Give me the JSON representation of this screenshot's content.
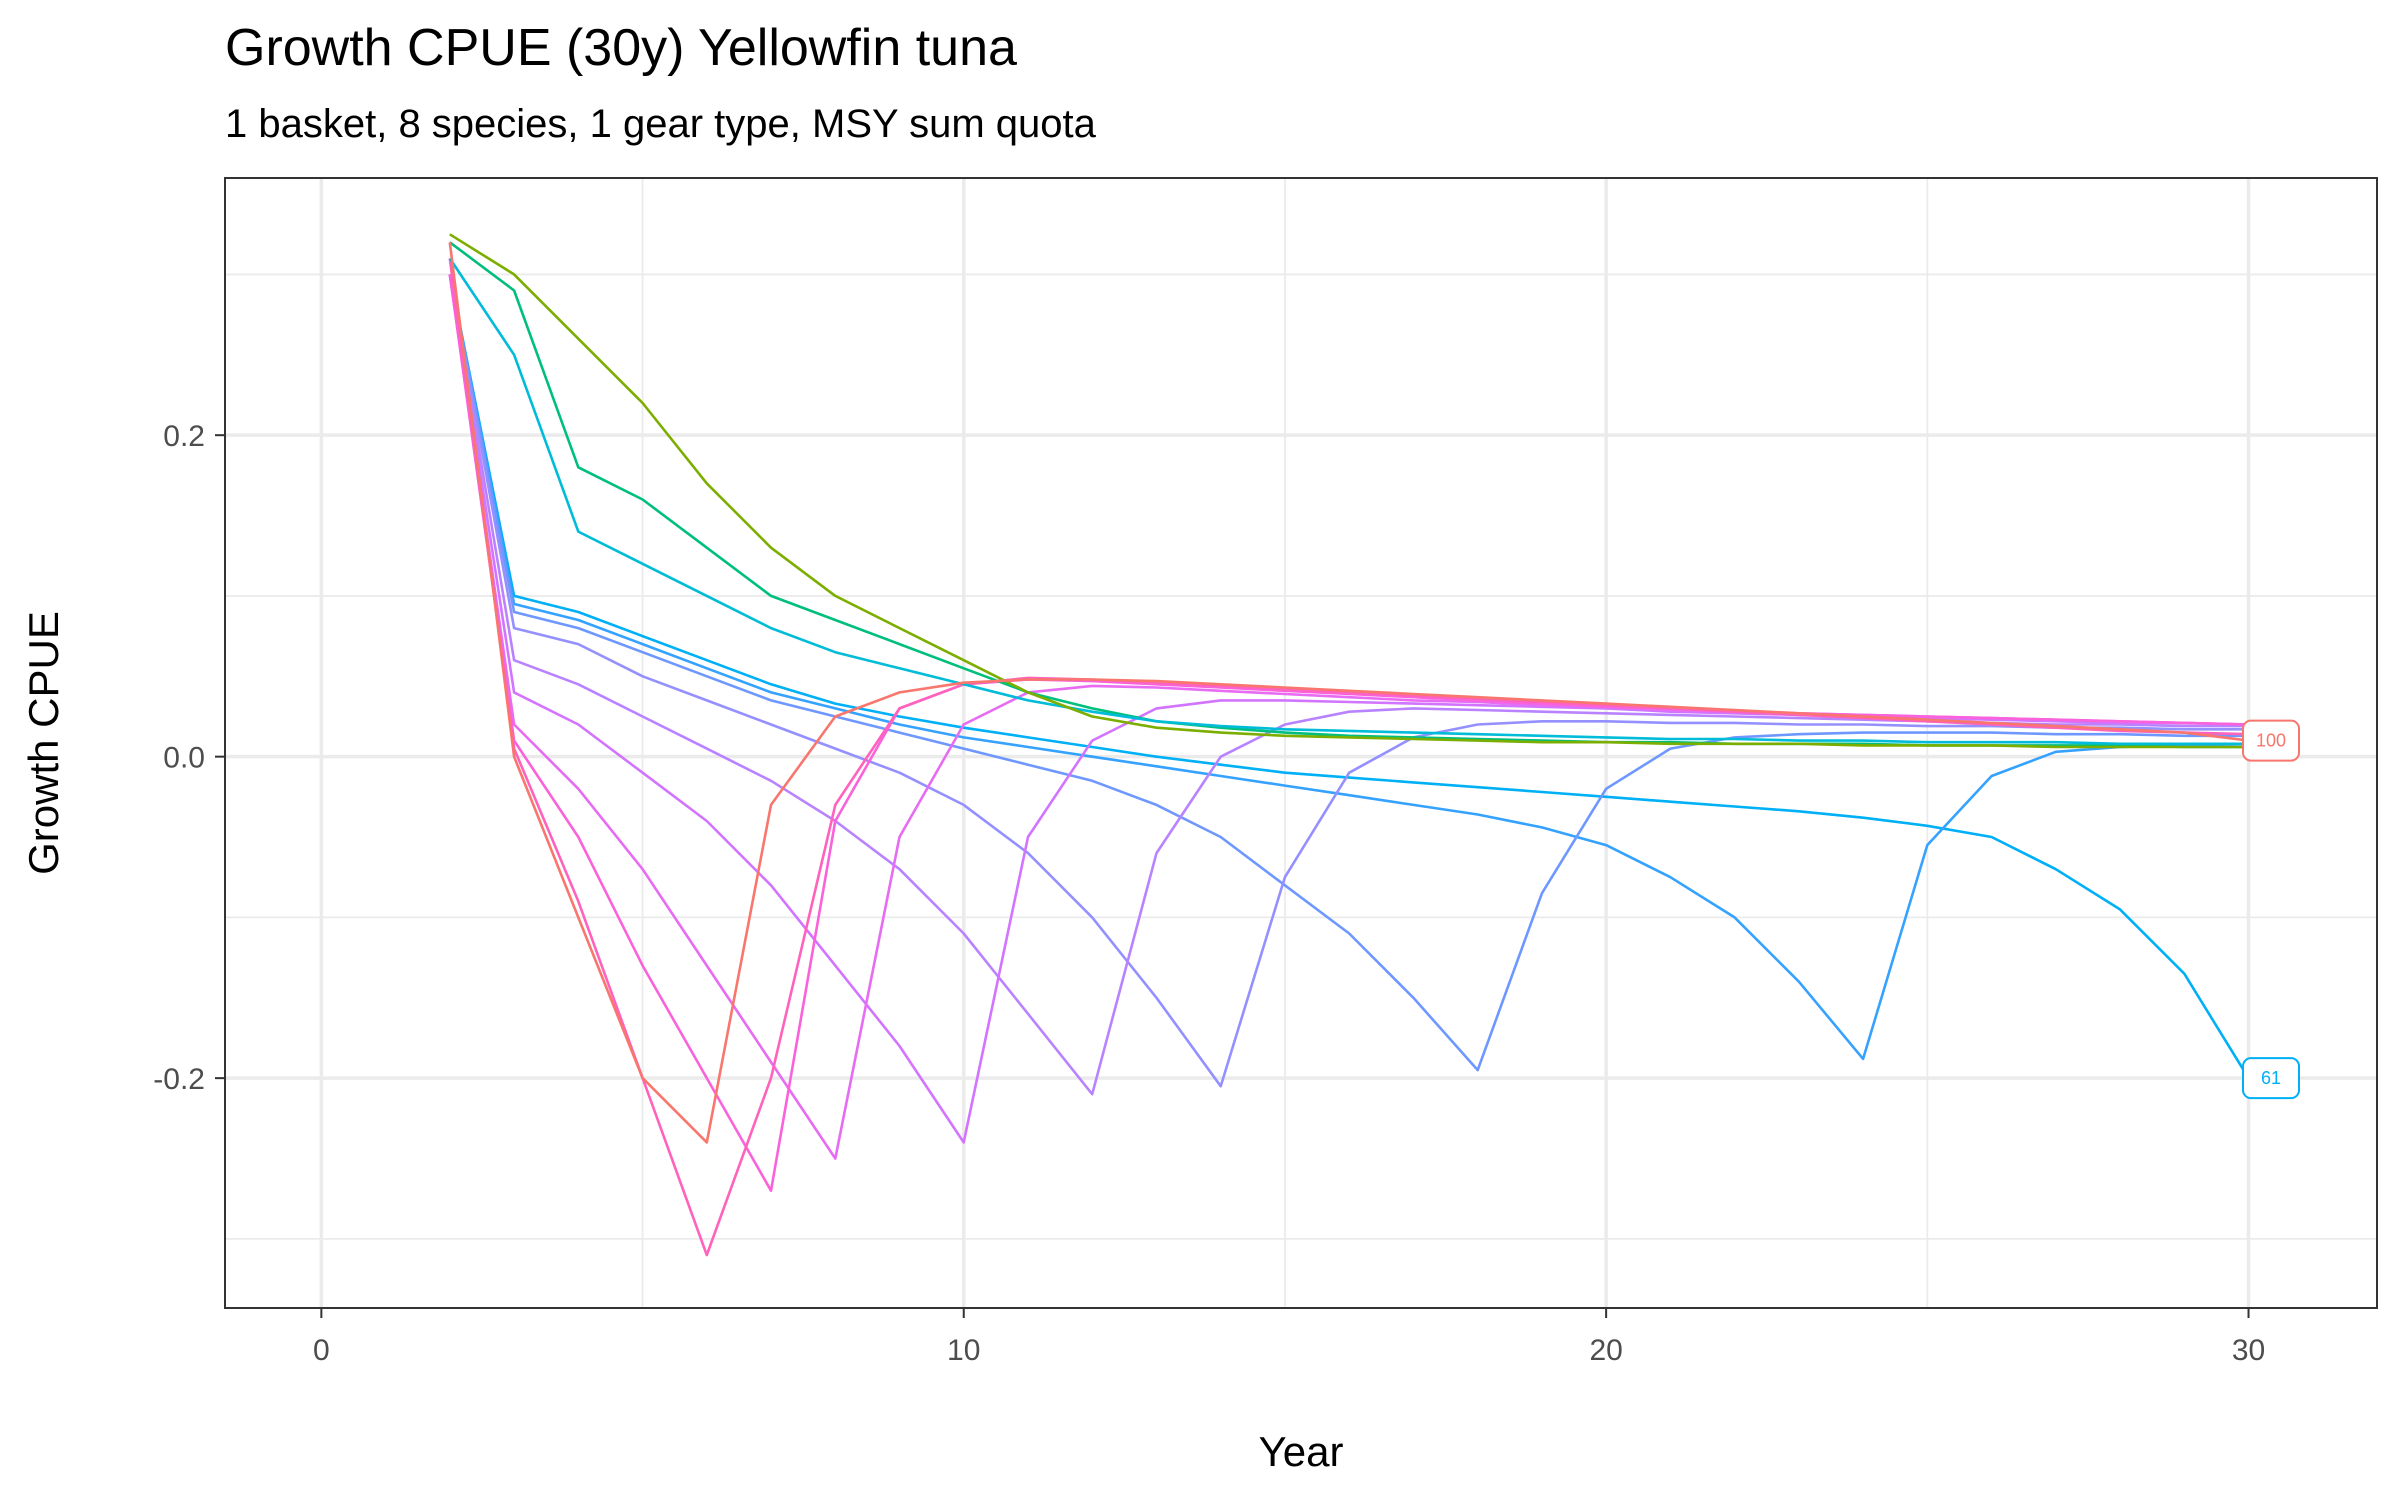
{
  "chart_data": {
    "type": "line",
    "title": "Growth CPUE (30y) Yellowfin tuna",
    "subtitle": "1 basket, 8 species, 1 gear type, MSY sum quota",
    "xlabel": "Year",
    "ylabel": "Growth CPUE",
    "xlim": [
      -1.5,
      32
    ],
    "ylim": [
      -0.343,
      0.36
    ],
    "x_ticks": [
      0,
      10,
      20,
      30
    ],
    "x_tick_labels": [
      "0",
      "10",
      "20",
      "30"
    ],
    "y_ticks": [
      -0.2,
      0.0,
      0.2
    ],
    "y_tick_labels": [
      "-0.2",
      "0.0",
      "0.2"
    ],
    "grid": true,
    "legend": "none",
    "series_note": "Quota scenarios 61 to 100, one line per scenario; colour runs from blue (61) through purple to pink/red (100)",
    "series": [
      {
        "label": "61",
        "color": "#00B0F6",
        "x": [
          2,
          3,
          4,
          5,
          6,
          7,
          8,
          9,
          10,
          11,
          12,
          13,
          14,
          15,
          16,
          17,
          18,
          19,
          20,
          21,
          22,
          23,
          24,
          25,
          26,
          27,
          28,
          29,
          30
        ],
        "y": [
          0.3,
          0.1,
          0.09,
          0.075,
          0.06,
          0.045,
          0.033,
          0.025,
          0.018,
          0.012,
          0.006,
          0.0,
          -0.005,
          -0.01,
          -0.013,
          -0.016,
          -0.019,
          -0.022,
          -0.025,
          -0.028,
          -0.031,
          -0.034,
          -0.038,
          -0.043,
          -0.05,
          -0.07,
          -0.095,
          -0.135,
          -0.2
        ]
      },
      {
        "label": "",
        "color": "#35A2FF",
        "x": [
          2,
          3,
          4,
          5,
          6,
          7,
          8,
          9,
          10,
          11,
          12,
          13,
          14,
          15,
          16,
          17,
          18,
          19,
          20,
          21,
          22,
          23,
          24,
          25,
          26,
          27,
          28,
          29,
          30
        ],
        "y": [
          0.3,
          0.095,
          0.085,
          0.07,
          0.055,
          0.04,
          0.03,
          0.02,
          0.012,
          0.006,
          0.0,
          -0.006,
          -0.012,
          -0.018,
          -0.024,
          -0.03,
          -0.036,
          -0.044,
          -0.055,
          -0.075,
          -0.1,
          -0.14,
          -0.188,
          -0.055,
          -0.012,
          0.003,
          0.006,
          0.007,
          0.008
        ]
      },
      {
        "label": "",
        "color": "#6E97FF",
        "x": [
          2,
          3,
          4,
          5,
          6,
          7,
          8,
          9,
          10,
          11,
          12,
          13,
          14,
          15,
          16,
          17,
          18,
          19,
          20,
          21,
          22,
          23,
          24,
          25,
          26,
          27,
          28,
          29,
          30
        ],
        "y": [
          0.3,
          0.09,
          0.08,
          0.065,
          0.05,
          0.035,
          0.025,
          0.015,
          0.005,
          -0.005,
          -0.015,
          -0.03,
          -0.05,
          -0.08,
          -0.11,
          -0.15,
          -0.195,
          -0.085,
          -0.02,
          0.005,
          0.012,
          0.014,
          0.015,
          0.015,
          0.015,
          0.014,
          0.014,
          0.013,
          0.013
        ]
      },
      {
        "label": "",
        "color": "#9590FF",
        "x": [
          2,
          3,
          4,
          5,
          6,
          7,
          8,
          9,
          10,
          11,
          12,
          13,
          14,
          15,
          16,
          17,
          18,
          19,
          20,
          21,
          22,
          23,
          24,
          25,
          26,
          27,
          28,
          29,
          30
        ],
        "y": [
          0.3,
          0.08,
          0.07,
          0.05,
          0.035,
          0.02,
          0.005,
          -0.01,
          -0.03,
          -0.06,
          -0.1,
          -0.15,
          -0.205,
          -0.075,
          -0.01,
          0.012,
          0.02,
          0.022,
          0.022,
          0.021,
          0.021,
          0.02,
          0.02,
          0.019,
          0.019,
          0.018,
          0.018,
          0.017,
          0.017
        ]
      },
      {
        "label": "",
        "color": "#B983FF",
        "x": [
          2,
          3,
          4,
          5,
          6,
          7,
          8,
          9,
          10,
          11,
          12,
          13,
          14,
          15,
          16,
          17,
          18,
          19,
          20,
          21,
          22,
          23,
          24,
          25,
          26,
          27,
          28,
          29,
          30
        ],
        "y": [
          0.3,
          0.06,
          0.045,
          0.025,
          0.005,
          -0.015,
          -0.04,
          -0.07,
          -0.11,
          -0.16,
          -0.21,
          -0.06,
          0.0,
          0.02,
          0.028,
          0.03,
          0.029,
          0.028,
          0.027,
          0.026,
          0.025,
          0.024,
          0.023,
          0.022,
          0.021,
          0.02,
          0.02,
          0.019,
          0.019
        ]
      },
      {
        "label": "",
        "color": "#D274FF",
        "x": [
          2,
          3,
          4,
          5,
          6,
          7,
          8,
          9,
          10,
          11,
          12,
          13,
          14,
          15,
          16,
          17,
          18,
          19,
          20,
          21,
          22,
          23,
          24,
          25,
          26,
          27,
          28,
          29,
          30
        ],
        "y": [
          0.3,
          0.04,
          0.02,
          -0.01,
          -0.04,
          -0.08,
          -0.13,
          -0.18,
          -0.24,
          -0.05,
          0.01,
          0.03,
          0.035,
          0.035,
          0.034,
          0.033,
          0.032,
          0.031,
          0.03,
          0.028,
          0.027,
          0.026,
          0.025,
          0.024,
          0.023,
          0.022,
          0.021,
          0.021,
          0.02
        ]
      },
      {
        "label": "",
        "color": "#E76BF3",
        "x": [
          2,
          3,
          4,
          5,
          6,
          7,
          8,
          9,
          10,
          11,
          12,
          13,
          14,
          15,
          16,
          17,
          18,
          19,
          20,
          21,
          22,
          23,
          24,
          25,
          26,
          27,
          28,
          29,
          30
        ],
        "y": [
          0.3,
          0.02,
          -0.02,
          -0.07,
          -0.13,
          -0.19,
          -0.25,
          -0.05,
          0.02,
          0.04,
          0.044,
          0.043,
          0.041,
          0.039,
          0.037,
          0.035,
          0.034,
          0.032,
          0.031,
          0.029,
          0.028,
          0.027,
          0.026,
          0.025,
          0.024,
          0.023,
          0.022,
          0.021,
          0.02
        ]
      },
      {
        "label": "",
        "color": "#FA62DB",
        "x": [
          2,
          3,
          4,
          5,
          6,
          7,
          8,
          9,
          10,
          11,
          12,
          13,
          14,
          15,
          16,
          17,
          18,
          19,
          20,
          21,
          22,
          23,
          24,
          25,
          26,
          27,
          28,
          29,
          30
        ],
        "y": [
          0.3,
          0.01,
          -0.05,
          -0.13,
          -0.2,
          -0.27,
          -0.04,
          0.03,
          0.045,
          0.048,
          0.047,
          0.045,
          0.043,
          0.041,
          0.039,
          0.037,
          0.035,
          0.033,
          0.031,
          0.03,
          0.028,
          0.027,
          0.026,
          0.025,
          0.024,
          0.023,
          0.022,
          0.021,
          0.02
        ]
      },
      {
        "label": "",
        "color": "#FF62BC",
        "x": [
          2,
          3,
          4,
          5,
          6,
          7,
          8,
          9,
          10,
          11,
          12,
          13,
          14,
          15,
          16,
          17,
          18,
          19,
          20,
          21,
          22,
          23,
          24,
          25,
          26,
          27,
          28,
          29,
          30
        ],
        "y": [
          0.31,
          0.005,
          -0.09,
          -0.2,
          -0.31,
          -0.2,
          -0.03,
          0.03,
          0.045,
          0.049,
          0.048,
          0.046,
          0.044,
          0.042,
          0.04,
          0.038,
          0.036,
          0.034,
          0.032,
          0.03,
          0.028,
          0.026,
          0.024,
          0.022,
          0.02,
          0.018,
          0.016,
          0.015,
          0.014
        ]
      },
      {
        "label": "",
        "color": "#00BF7D",
        "x": [
          2,
          3,
          4,
          5,
          6,
          7,
          8,
          9,
          10,
          11,
          12,
          13,
          14,
          15,
          16,
          17,
          18,
          19,
          20,
          21,
          22,
          23,
          24,
          25,
          26,
          27,
          28,
          29,
          30
        ],
        "y": [
          0.32,
          0.29,
          0.18,
          0.16,
          0.13,
          0.1,
          0.085,
          0.07,
          0.055,
          0.04,
          0.03,
          0.022,
          0.018,
          0.015,
          0.013,
          0.012,
          0.011,
          0.01,
          0.009,
          0.009,
          0.008,
          0.008,
          0.008,
          0.007,
          0.007,
          0.007,
          0.007,
          0.006,
          0.006
        ]
      },
      {
        "label": "",
        "color": "#00BCD8",
        "x": [
          2,
          3,
          4,
          5,
          6,
          7,
          8,
          9,
          10,
          11,
          12,
          13,
          14,
          15,
          16,
          17,
          18,
          19,
          20,
          21,
          22,
          23,
          24,
          25,
          26,
          27,
          28,
          29,
          30
        ],
        "y": [
          0.31,
          0.25,
          0.14,
          0.12,
          0.1,
          0.08,
          0.065,
          0.055,
          0.045,
          0.035,
          0.028,
          0.022,
          0.019,
          0.017,
          0.016,
          0.015,
          0.014,
          0.013,
          0.012,
          0.011,
          0.011,
          0.01,
          0.01,
          0.009,
          0.009,
          0.009,
          0.008,
          0.008,
          0.008
        ]
      },
      {
        "label": "",
        "color": "#7CAE00",
        "x": [
          2,
          3,
          4,
          5,
          6,
          7,
          8,
          9,
          10,
          11,
          12,
          13,
          14,
          15,
          16,
          17,
          18,
          19,
          20,
          21,
          22,
          23,
          24,
          25,
          26,
          27,
          28,
          29,
          30
        ],
        "y": [
          0.325,
          0.3,
          0.26,
          0.22,
          0.17,
          0.13,
          0.1,
          0.08,
          0.06,
          0.04,
          0.025,
          0.018,
          0.015,
          0.013,
          0.012,
          0.011,
          0.01,
          0.009,
          0.009,
          0.008,
          0.008,
          0.008,
          0.007,
          0.007,
          0.007,
          0.006,
          0.006,
          0.006,
          0.006
        ]
      },
      {
        "label": "100",
        "color": "#F8766D",
        "x": [
          2,
          3,
          4,
          5,
          6,
          7,
          8,
          9,
          10,
          11,
          12,
          13,
          14,
          15,
          16,
          17,
          18,
          19,
          20,
          21,
          22,
          23,
          24,
          25,
          26,
          27,
          28,
          29,
          30
        ],
        "y": [
          0.32,
          0.0,
          -0.1,
          -0.2,
          -0.24,
          -0.03,
          0.025,
          0.04,
          0.046,
          0.048,
          0.048,
          0.047,
          0.045,
          0.043,
          0.041,
          0.039,
          0.037,
          0.035,
          0.033,
          0.031,
          0.029,
          0.027,
          0.025,
          0.023,
          0.021,
          0.019,
          0.017,
          0.015,
          0.01
        ]
      }
    ],
    "end_labels": [
      {
        "text": "100",
        "x": 30.35,
        "y": 0.01,
        "color": "#F8766D"
      },
      {
        "text": "61",
        "x": 30.35,
        "y": -0.2,
        "color": "#00B0F6"
      }
    ]
  }
}
